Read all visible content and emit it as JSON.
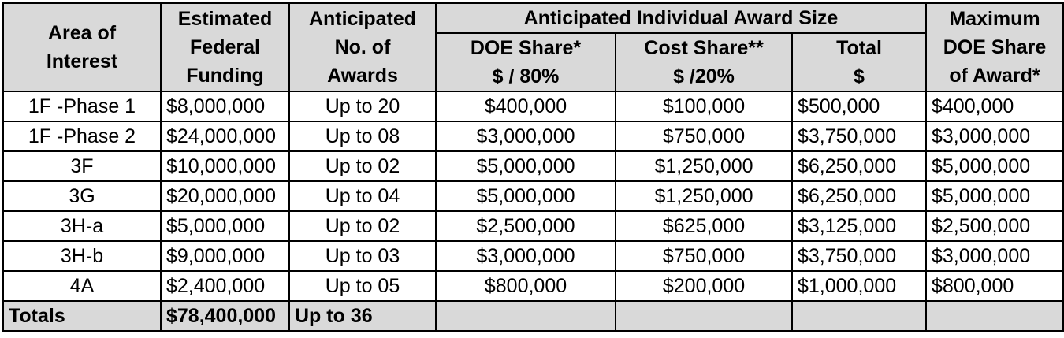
{
  "header": {
    "area": [
      "Area of",
      "Interest"
    ],
    "funding": [
      "Estimated",
      "Federal",
      "Funding"
    ],
    "awards": [
      "Anticipated",
      "No. of",
      "Awards"
    ],
    "award_size_group": "Anticipated Individual Award Size",
    "doe_share": [
      "DOE Share*",
      "$ / 80%"
    ],
    "cost_share": [
      "Cost Share**",
      "$ /20%"
    ],
    "total": [
      "Total",
      "$"
    ],
    "maximum": [
      "Maximum",
      "DOE Share",
      "of Award*"
    ]
  },
  "rows": [
    {
      "area": "1F -Phase 1",
      "funding": "$8,000,000",
      "awards": "Up to 20",
      "doe": "$400,000",
      "cost": "$100,000",
      "total": "$500,000",
      "max": "$400,000"
    },
    {
      "area": "1F -Phase 2",
      "funding": "$24,000,000",
      "awards": "Up to 08",
      "doe": "$3,000,000",
      "cost": "$750,000",
      "total": "$3,750,000",
      "max": "$3,000,000"
    },
    {
      "area": "3F",
      "funding": "$10,000,000",
      "awards": "Up to 02",
      "doe": "$5,000,000",
      "cost": "$1,250,000",
      "total": "$6,250,000",
      "max": "$5,000,000"
    },
    {
      "area": "3G",
      "funding": "$20,000,000",
      "awards": "Up to 04",
      "doe": "$5,000,000",
      "cost": "$1,250,000",
      "total": "$6,250,000",
      "max": "$5,000,000"
    },
    {
      "area": "3H-a",
      "funding": "$5,000,000",
      "awards": "Up to 02",
      "doe": "$2,500,000",
      "cost": "$625,000",
      "total": "$3,125,000",
      "max": "$2,500,000"
    },
    {
      "area": "3H-b",
      "funding": "$9,000,000",
      "awards": "Up to 03",
      "doe": "$3,000,000",
      "cost": "$750,000",
      "total": "$3,750,000",
      "max": "$3,000,000"
    },
    {
      "area": "4A",
      "funding": "$2,400,000",
      "awards": "Up to 05",
      "doe": "$800,000",
      "cost": "$200,000",
      "total": "$1,000,000",
      "max": "$800,000"
    }
  ],
  "totals": {
    "label": "Totals",
    "funding": "$78,400,000",
    "awards": "Up to 36"
  },
  "colors": {
    "header_bg": "#d9d9d9",
    "border": "#000000",
    "text": "#000000"
  }
}
